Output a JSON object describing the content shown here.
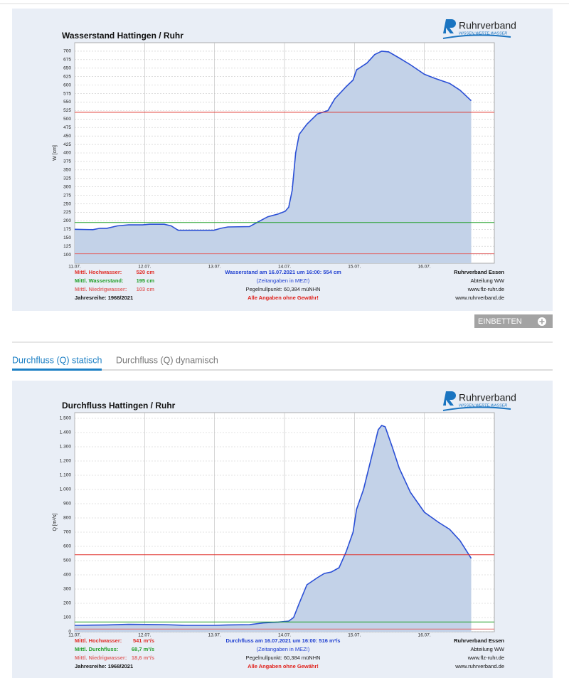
{
  "logo": {
    "name": "Ruhrverband",
    "tagline": "WISSEN.WERTE.WASSER"
  },
  "embed_button": "EINBETTEN",
  "tabs": [
    "Durchfluss (Q) statisch",
    "Durchfluss (Q) dynamisch"
  ],
  "chart_data": [
    {
      "type": "area",
      "title": "Wasserstand Hattingen / Ruhr",
      "y_label": "W [cm]",
      "color": "#2a4fd6",
      "fill": "#c3d2e8",
      "grid": true,
      "xlim": [
        0,
        6
      ],
      "xticks": [
        {
          "value": 0,
          "label": "11.07."
        },
        {
          "value": 1,
          "label": "12.07."
        },
        {
          "value": 2,
          "label": "13.07."
        },
        {
          "value": 3,
          "label": "14.07."
        },
        {
          "value": 4,
          "label": "15.07."
        },
        {
          "value": 5,
          "label": "16.07."
        }
      ],
      "ylim": [
        75,
        725
      ],
      "yticks": [
        100,
        125,
        150,
        175,
        200,
        225,
        250,
        275,
        300,
        325,
        350,
        375,
        400,
        425,
        450,
        475,
        500,
        525,
        550,
        575,
        600,
        625,
        650,
        675,
        700
      ],
      "x": [
        0,
        0.26,
        0.36,
        0.46,
        0.61,
        0.77,
        0.97,
        1.07,
        1.28,
        1.38,
        1.48,
        1.99,
        2.09,
        2.19,
        2.5,
        2.65,
        2.76,
        2.91,
        3.01,
        3.06,
        3.11,
        3.16,
        3.21,
        3.32,
        3.47,
        3.62,
        3.72,
        3.88,
        3.98,
        4.03,
        4.18,
        4.29,
        4.39,
        4.49,
        4.64,
        4.8,
        5.0,
        5.15,
        5.36,
        5.51,
        5.67
      ],
      "values": [
        175,
        174,
        178,
        178,
        185,
        188,
        188,
        190,
        190,
        185,
        172,
        172,
        178,
        182,
        183,
        200,
        212,
        220,
        228,
        240,
        290,
        400,
        455,
        485,
        515,
        525,
        560,
        595,
        615,
        645,
        665,
        690,
        700,
        698,
        680,
        660,
        632,
        620,
        605,
        585,
        554
      ],
      "reference_lines": [
        {
          "label": "Mittl. Hochwasser:",
          "value": 520,
          "value_label": "520 cm",
          "color": "#e0302a"
        },
        {
          "label": "Mittl. Wasserstand:",
          "value": 195,
          "value_label": "195 cm",
          "color": "#23a02b"
        },
        {
          "label": "Mittl. Niedrigwasser:",
          "value": 103,
          "value_label": "103 cm",
          "color": "#e06a6a"
        }
      ],
      "series_range": "Jahresreihe: 1968/2021",
      "center_notes": [
        "Wasserstand am 16.07.2021 um 16:00: 554 cm",
        "(Zeitangaben in MEZ!)",
        "Pegelnullpunkt:  60,384 müNHN",
        "Alle Angaben ohne Gewähr!"
      ],
      "right_notes": [
        "Ruhrverband Essen",
        "Abteilung WW",
        "www.flz-ruhr.de",
        "www.ruhrverband.de"
      ]
    },
    {
      "type": "area",
      "title": "Durchfluss Hattingen / Ruhr",
      "y_label": "Q [m³/s]",
      "color": "#2a4fd6",
      "fill": "#c3d2e8",
      "grid": true,
      "xlim": [
        0,
        6
      ],
      "xticks": [
        {
          "value": 0,
          "label": "11.07."
        },
        {
          "value": 1,
          "label": "12.07."
        },
        {
          "value": 2,
          "label": "13.07."
        },
        {
          "value": 3,
          "label": "14.07."
        },
        {
          "value": 4,
          "label": "15.07."
        },
        {
          "value": 5,
          "label": "16.07."
        }
      ],
      "ylim": [
        0,
        1540
      ],
      "yticks": [
        0,
        100,
        200,
        300,
        400,
        500,
        600,
        700,
        800,
        900,
        {
          "value": 1000,
          "label": "1.000"
        },
        {
          "value": 1100,
          "label": "1.100"
        },
        {
          "value": 1200,
          "label": "1.200"
        },
        {
          "value": 1300,
          "label": "1.300"
        },
        {
          "value": 1400,
          "label": "1.400"
        },
        {
          "value": 1500,
          "label": "1.500"
        }
      ],
      "x": [
        0,
        0.46,
        0.77,
        1.28,
        1.58,
        1.99,
        2.19,
        2.5,
        2.7,
        2.91,
        3.06,
        3.13,
        3.21,
        3.32,
        3.47,
        3.57,
        3.67,
        3.78,
        3.88,
        3.98,
        4.03,
        4.13,
        4.23,
        4.34,
        4.39,
        4.44,
        4.54,
        4.64,
        4.8,
        5.0,
        5.2,
        5.36,
        5.51,
        5.67
      ],
      "values": [
        45,
        48,
        52,
        50,
        45,
        45,
        48,
        50,
        62,
        68,
        75,
        100,
        200,
        330,
        380,
        410,
        420,
        450,
        560,
        700,
        860,
        1000,
        1200,
        1420,
        1450,
        1440,
        1300,
        1150,
        980,
        840,
        770,
        720,
        640,
        516
      ],
      "reference_lines": [
        {
          "label": "Mittl. Hochwasser:",
          "value": 541,
          "value_label": "541 m³/s",
          "color": "#e0302a"
        },
        {
          "label": "Mittl. Durchfluss:",
          "value": 68.7,
          "value_label": "68,7 m³/s",
          "color": "#23a02b"
        },
        {
          "label": "Mittl. Niedrigwasser:",
          "value": 18.6,
          "value_label": "18,6 m³/s",
          "color": "#e06a6a"
        }
      ],
      "series_range": "Jahresreihe: 1968/2021",
      "center_notes": [
        "Durchfluss am 16.07.2021 um 16:00: 516 m³/s",
        "(Zeitangaben in MEZ!)",
        "Pegelnullpunkt:  60,384 müNHN",
        "Alle Angaben ohne Gewähr!"
      ],
      "right_notes": [
        "Ruhrverband Essen",
        "Abteilung WW",
        "www.flz-ruhr.de",
        "www.ruhrverband.de"
      ]
    }
  ]
}
